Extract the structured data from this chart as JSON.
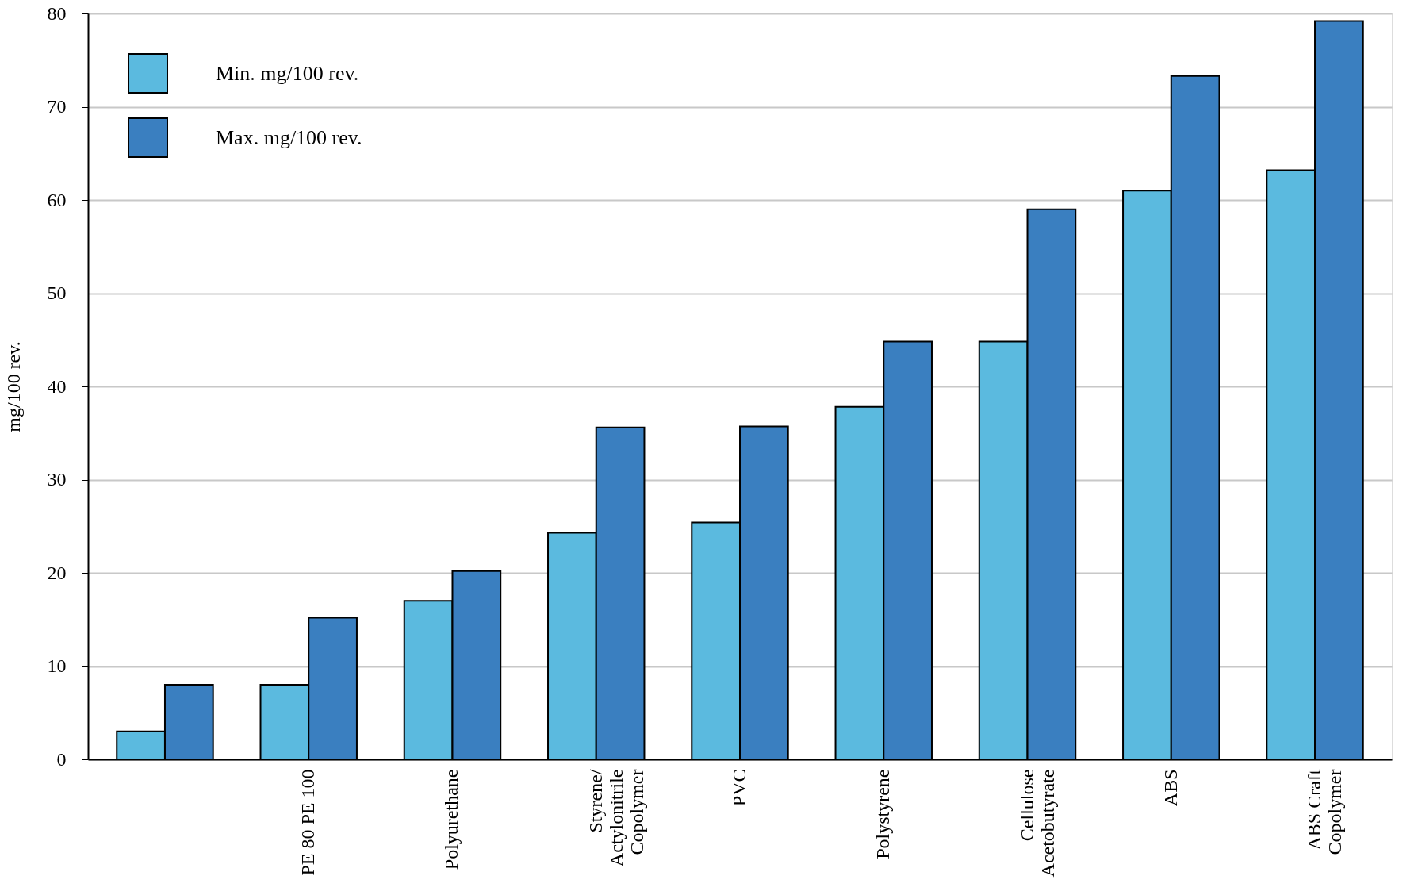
{
  "chart_data": {
    "type": "bar",
    "ylabel": "mg/100 rev.",
    "categories": [
      null,
      "PE 80 PE 100",
      "Polyurethane",
      "Styrene/\nActylonitrile\nCopolymer",
      "PVC",
      "Polystyrene",
      "Cellulose\nAcetobutyrate",
      "ABS",
      "ABS Craft\nCopolymer"
    ],
    "series": [
      {
        "name": "Min. mg/100 rev.",
        "color": "#5bbadf",
        "values": [
          3,
          8,
          17,
          24.3,
          25.4,
          37.8,
          44.8,
          61,
          63.2
        ]
      },
      {
        "name": "Max. mg/100 rev.",
        "color": "#3a7fc0",
        "values": [
          8,
          15.2,
          20.2,
          35.6,
          35.7,
          44.8,
          59,
          73.3,
          79.2
        ]
      }
    ],
    "ylim": [
      0,
      80
    ],
    "yticks": [
      0,
      10,
      20,
      30,
      40,
      50,
      60,
      70,
      80
    ],
    "grid": "y",
    "legend": "top left"
  }
}
